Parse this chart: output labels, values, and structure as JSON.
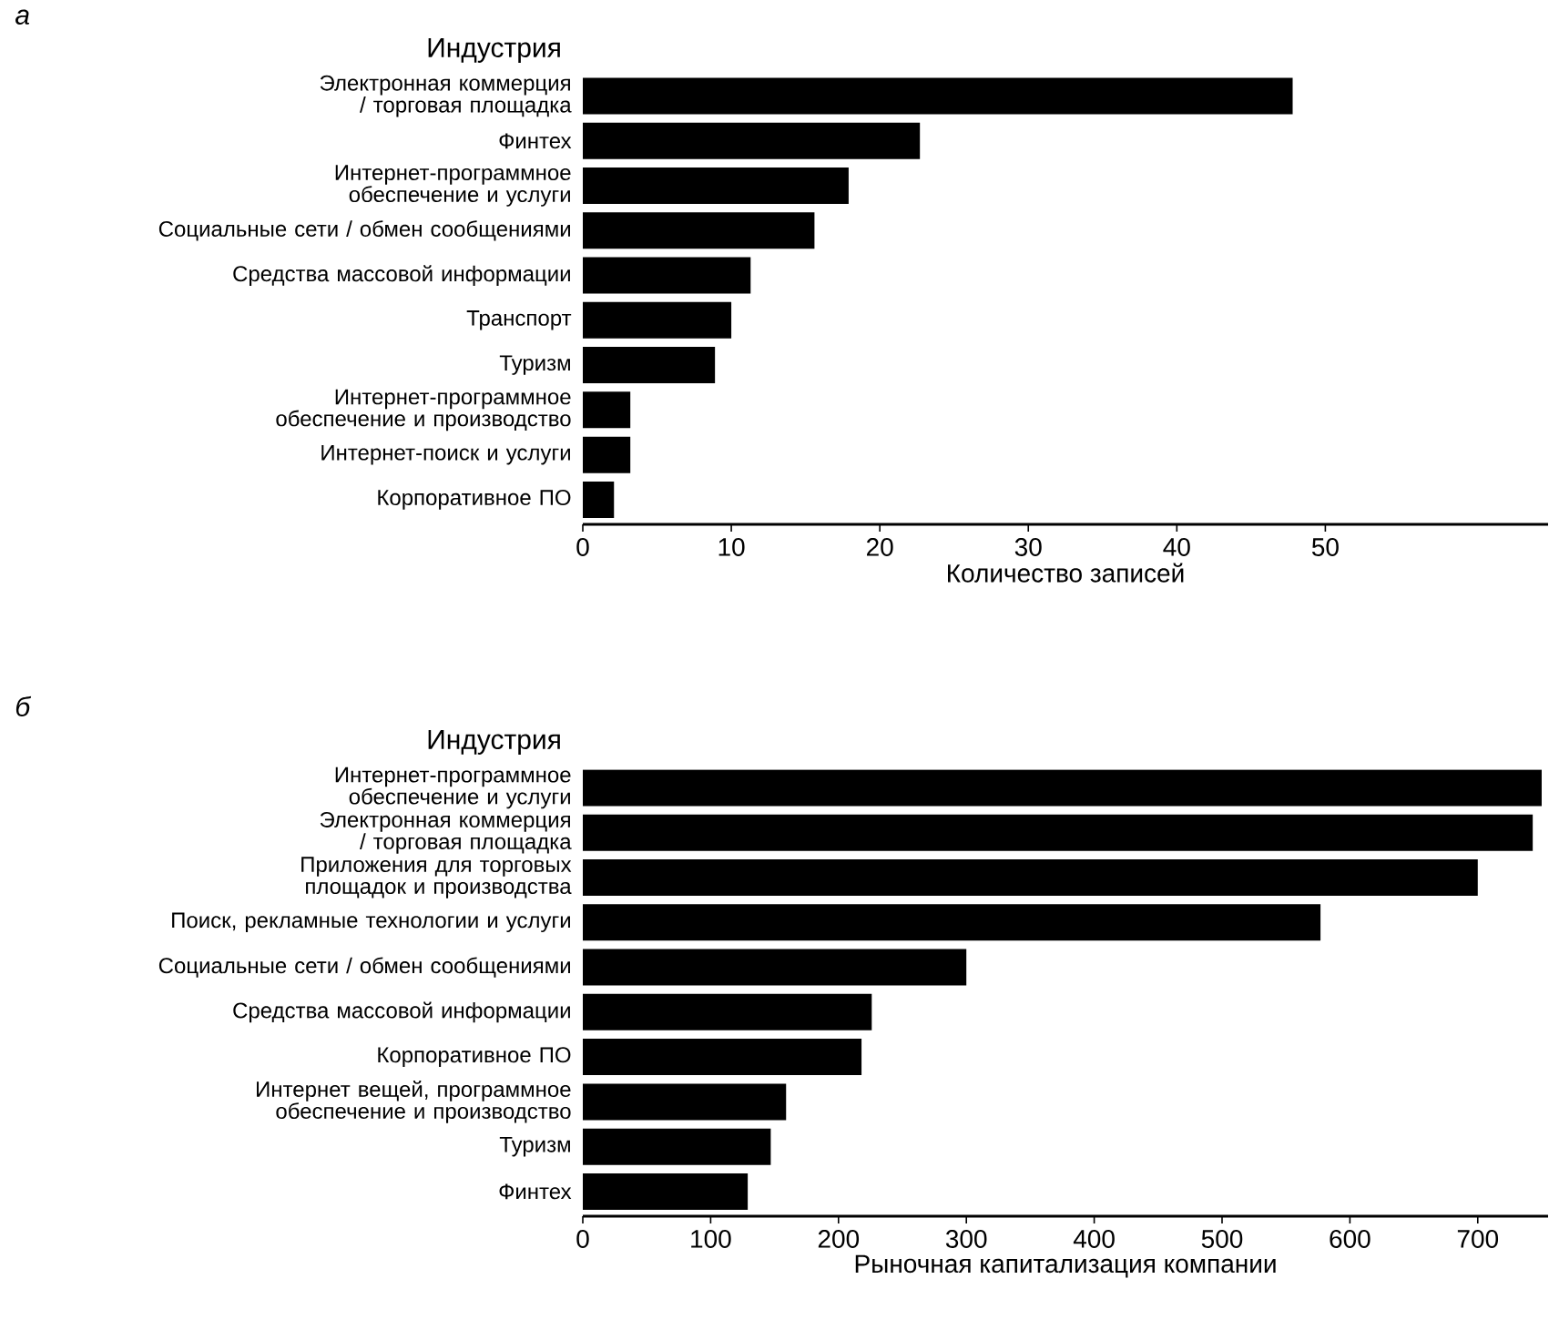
{
  "chart_data": [
    {
      "type": "bar",
      "orientation": "horizontal",
      "title": "а",
      "ylabel": "Индустрия",
      "xlabel": "Количество записей",
      "categories": [
        "Электронная коммерция / торговая площадка",
        "Финтех",
        "Интернет-программное обеспечение и услуги",
        "Социальные сети / обмен сообщениями",
        "Средства массовой информации",
        "Транспорт",
        "Туризм",
        "Интернет-программное обеспечение и производство",
        "Интернет-поиск и услуги",
        "Корпоративное ПО"
      ],
      "values": [
        47.8,
        22.7,
        17.9,
        15.6,
        11.3,
        10.0,
        8.9,
        3.2,
        3.2,
        2.1
      ],
      "color": "#000000",
      "xlim": [
        0,
        65
      ],
      "xticks": [
        0,
        10,
        20,
        30,
        40,
        50
      ]
    },
    {
      "type": "bar",
      "orientation": "horizontal",
      "title": "б",
      "ylabel": "Индустрия",
      "xlabel": "Рыночная капитализация компании",
      "categories": [
        "Интернет-программное обеспечение и услуги",
        "Электронная коммерция / торговая площадка",
        "Приложения для торговых площадок и производства",
        "Поиск, рекламные технологии и услуги",
        "Социальные сети / обмен сообщениями",
        "Средства массовой информации",
        "Корпоративное ПО",
        "Интернет вещей, программное обеспечение и производство",
        "Туризм",
        "Финтех"
      ],
      "values": [
        750,
        743,
        700,
        577,
        300,
        226,
        218,
        159,
        147,
        129
      ],
      "color": "#000000",
      "xlim": [
        0,
        755
      ],
      "xticks": [
        0,
        100,
        200,
        300,
        400,
        500,
        600,
        700
      ]
    }
  ]
}
